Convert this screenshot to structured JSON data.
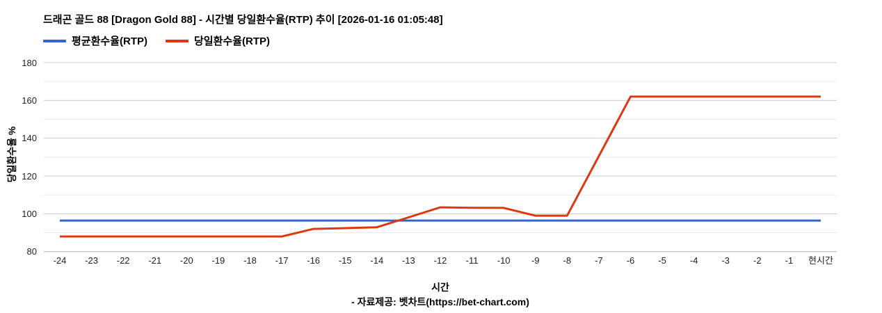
{
  "chart": {
    "title": "드래곤 골드 88 [Dragon Gold 88] - 시간별 당일환수율(RTP) 추이 [2026-01-16 01:05:48]",
    "legend": [
      {
        "label": "평균환수율(RTP)",
        "color": "#3366cc"
      },
      {
        "label": "당일환수율(RTP)",
        "color": "#dc3912"
      }
    ],
    "xlabel": "시간",
    "ylabel": "당일환수율 %",
    "footer": "- 자료제공: 벳차트(https://bet-chart.com)"
  },
  "chart_data": {
    "type": "line",
    "title": "드래곤 골드 88 [Dragon Gold 88] - 시간별 당일환수율(RTP) 추이 [2026-01-16 01:05:48]",
    "xlabel": "시간",
    "ylabel": "당일환수율 %",
    "categories": [
      "-24",
      "-23",
      "-22",
      "-21",
      "-20",
      "-19",
      "-18",
      "-17",
      "-16",
      "-15",
      "-14",
      "-13",
      "-12",
      "-11",
      "-10",
      "-9",
      "-8",
      "-7",
      "-6",
      "-5",
      "-4",
      "-3",
      "-2",
      "-1",
      "현시간"
    ],
    "series": [
      {
        "name": "평균환수율(RTP)",
        "color": "#3366cc",
        "values": [
          96.4,
          96.4,
          96.4,
          96.4,
          96.4,
          96.4,
          96.4,
          96.4,
          96.4,
          96.4,
          96.4,
          96.4,
          96.4,
          96.4,
          96.4,
          96.4,
          96.4,
          96.4,
          96.4,
          96.4,
          96.4,
          96.4,
          96.4,
          96.4,
          96.4
        ]
      },
      {
        "name": "당일환수율(RTP)",
        "color": "#dc3912",
        "values": [
          88,
          88,
          88,
          88,
          88,
          88,
          88,
          88,
          92,
          92.4,
          92.9,
          98.1,
          103.4,
          103.2,
          103.1,
          99,
          99,
          130.5,
          162,
          162,
          162,
          162,
          162,
          162,
          162
        ]
      }
    ],
    "ylim": [
      80,
      180
    ],
    "yticks": [
      80,
      100,
      120,
      140,
      160,
      180
    ],
    "minor_yticks": [
      90,
      110,
      130,
      150,
      170
    ],
    "grid": true,
    "legend_position": "top",
    "gridline_color": "#cccccc",
    "minor_gridline_color": "#ebebeb",
    "baseline_color": "#adadad"
  }
}
